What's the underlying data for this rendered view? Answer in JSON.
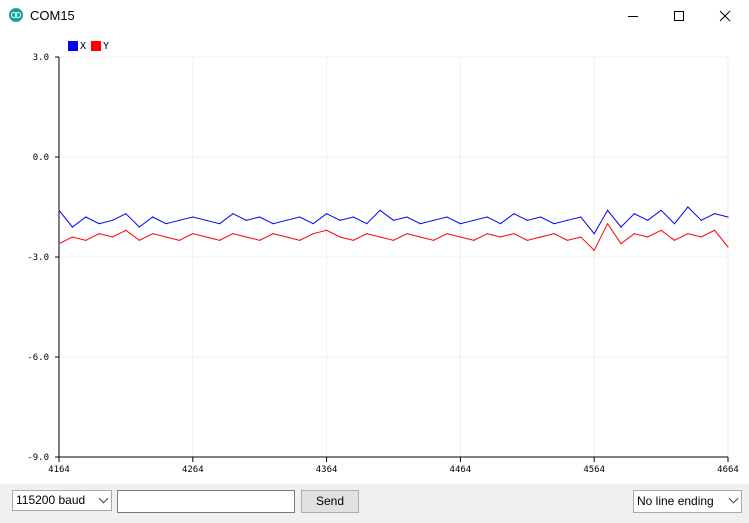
{
  "window": {
    "title": "COM15",
    "icon": "arduino-icon",
    "controls": [
      "minimize-icon",
      "maximize-icon",
      "close-icon"
    ]
  },
  "bottom_bar": {
    "baud_select": "115200 baud",
    "message_input_value": "",
    "send_label": "Send",
    "line_ending_select": "No line ending"
  },
  "colors": {
    "series_x": "#0000ff",
    "series_y": "#ff0000",
    "grid": "#efefef",
    "axis": "#000000"
  },
  "chart_data": {
    "type": "line",
    "title": "",
    "xlabel": "",
    "ylabel": "",
    "xlim": [
      4164,
      4664
    ],
    "ylim": [
      -9.0,
      3.0
    ],
    "xticks": [
      4164,
      4264,
      4364,
      4464,
      4564,
      4664
    ],
    "yticks": [
      3.0,
      0.0,
      -3.0,
      -6.0,
      -9.0
    ],
    "ytick_labels": [
      "3.0",
      "0.0",
      "-3.0",
      "-6.0",
      "-9.0"
    ],
    "grid": true,
    "legend": "top-left",
    "x": [
      4164,
      4174,
      4184,
      4194,
      4204,
      4214,
      4224,
      4234,
      4244,
      4254,
      4264,
      4274,
      4284,
      4294,
      4304,
      4314,
      4324,
      4334,
      4344,
      4354,
      4364,
      4374,
      4384,
      4394,
      4404,
      4414,
      4424,
      4434,
      4444,
      4454,
      4464,
      4474,
      4484,
      4494,
      4504,
      4514,
      4524,
      4534,
      4544,
      4554,
      4564,
      4574,
      4584,
      4594,
      4604,
      4614,
      4624,
      4634,
      4644,
      4654,
      4664
    ],
    "series": [
      {
        "name": "X",
        "values": [
          -1.6,
          -2.1,
          -1.8,
          -2.0,
          -1.9,
          -1.7,
          -2.1,
          -1.8,
          -2.0,
          -1.9,
          -1.8,
          -1.9,
          -2.0,
          -1.7,
          -1.9,
          -1.8,
          -2.0,
          -1.9,
          -1.8,
          -2.0,
          -1.7,
          -1.9,
          -1.8,
          -2.0,
          -1.6,
          -1.9,
          -1.8,
          -2.0,
          -1.9,
          -1.8,
          -2.0,
          -1.9,
          -1.8,
          -2.0,
          -1.7,
          -1.9,
          -1.8,
          -2.0,
          -1.9,
          -1.8,
          -2.3,
          -1.6,
          -2.1,
          -1.7,
          -1.9,
          -1.6,
          -2.0,
          -1.5,
          -1.9,
          -1.7,
          -1.8
        ]
      },
      {
        "name": "Y",
        "values": [
          -2.6,
          -2.4,
          -2.5,
          -2.3,
          -2.4,
          -2.2,
          -2.5,
          -2.3,
          -2.4,
          -2.5,
          -2.3,
          -2.4,
          -2.5,
          -2.3,
          -2.4,
          -2.5,
          -2.3,
          -2.4,
          -2.5,
          -2.3,
          -2.2,
          -2.4,
          -2.5,
          -2.3,
          -2.4,
          -2.5,
          -2.3,
          -2.4,
          -2.5,
          -2.3,
          -2.4,
          -2.5,
          -2.3,
          -2.4,
          -2.3,
          -2.5,
          -2.4,
          -2.3,
          -2.5,
          -2.4,
          -2.8,
          -2.0,
          -2.6,
          -2.3,
          -2.4,
          -2.2,
          -2.5,
          -2.3,
          -2.4,
          -2.2,
          -2.7
        ]
      }
    ]
  }
}
